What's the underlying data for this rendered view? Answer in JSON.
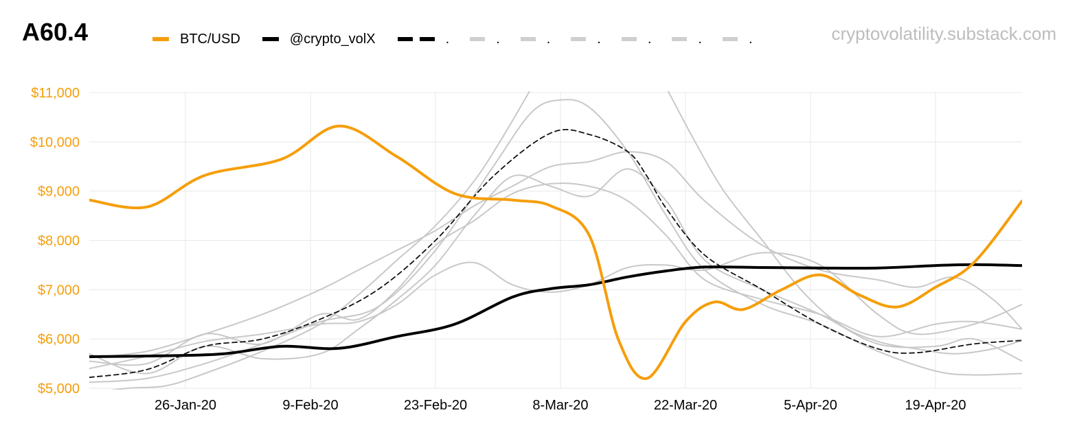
{
  "title": "A60.4",
  "source": "cryptovolatility.substack.com",
  "legend": {
    "btc_label": "BTC/USD",
    "vol_label": "@crypto_volX",
    "extra_markers": [
      ".",
      ".",
      ".",
      ".",
      ".",
      ".",
      "."
    ]
  },
  "colors": {
    "btc": "#f59e0b",
    "vol": "#000000",
    "gray": "#c8c8c8",
    "grid": "#e8e8e8"
  },
  "chart_data": {
    "type": "line",
    "title": "A60.4",
    "xlabel": "",
    "ylabel": "",
    "x_range": [
      0,
      97
    ],
    "ylim": [
      5000,
      11000
    ],
    "yticks": [
      5000,
      6000,
      7000,
      8000,
      9000,
      10000,
      11000
    ],
    "ytick_labels": [
      "$5,000",
      "$6,000",
      "$7,000",
      "$8,000",
      "$9,000",
      "$10,000",
      "$11,000"
    ],
    "xticks": [
      10,
      23,
      36,
      49,
      62,
      75,
      88
    ],
    "xtick_labels": [
      "26-Jan-20",
      "9-Feb-20",
      "23-Feb-20",
      "8-Mar-20",
      "22-Mar-20",
      "5-Apr-20",
      "19-Apr-20"
    ],
    "series": [
      {
        "name": "BTC/USD",
        "role": "btc",
        "x": [
          0,
          6,
          12,
          20,
          26,
          32,
          38,
          44,
          48,
          52,
          55,
          58,
          62,
          65,
          68,
          72,
          76,
          80,
          84,
          88,
          92,
          97
        ],
        "y": [
          8820,
          8680,
          9320,
          9650,
          10320,
          9700,
          8950,
          8820,
          8700,
          8100,
          6000,
          5200,
          6350,
          6750,
          6600,
          7000,
          7300,
          6900,
          6650,
          7050,
          7550,
          8800
        ]
      },
      {
        "name": "@crypto_volX",
        "role": "vol",
        "x": [
          0,
          8,
          14,
          20,
          26,
          32,
          38,
          44,
          48,
          52,
          56,
          60,
          64,
          70,
          76,
          82,
          88,
          92,
          97
        ],
        "y": [
          5640,
          5660,
          5700,
          5850,
          5810,
          6050,
          6300,
          6850,
          7020,
          7100,
          7260,
          7380,
          7460,
          7450,
          7440,
          7440,
          7490,
          7510,
          7490
        ],
        "thick": true
      },
      {
        "name": "dashed",
        "role": "dashed",
        "x": [
          0,
          6,
          12,
          18,
          24,
          30,
          36,
          42,
          48,
          52,
          56,
          58,
          60,
          64,
          70,
          76,
          82,
          86,
          92,
          97
        ],
        "y": [
          5220,
          5380,
          5850,
          6000,
          6400,
          7000,
          8000,
          9300,
          10180,
          10150,
          9800,
          9300,
          8650,
          7700,
          7000,
          6300,
          5800,
          5720,
          5900,
          5970
        ]
      },
      {
        "name": "g1",
        "role": "gray",
        "x": [
          0,
          6,
          12,
          18,
          24,
          30,
          36,
          42,
          46,
          49,
          52,
          56,
          60,
          64,
          70,
          76,
          82,
          88,
          92,
          97
        ],
        "y": [
          5120,
          5200,
          5500,
          5900,
          6350,
          6650,
          7800,
          9500,
          10600,
          10850,
          10700,
          9800,
          8500,
          7400,
          6700,
          6300,
          5750,
          5350,
          5270,
          5300
        ]
      },
      {
        "name": "g2",
        "role": "gray",
        "x": [
          0,
          4,
          8,
          12,
          18,
          24,
          28,
          32,
          36,
          40,
          43,
          46
        ],
        "y": [
          4900,
          5000,
          5050,
          5300,
          5750,
          6300,
          6900,
          7600,
          8300,
          9200,
          10100,
          11100
        ]
      },
      {
        "name": "g3",
        "role": "gray",
        "x": [
          60,
          63,
          66,
          70,
          74,
          78,
          82,
          86,
          90,
          94,
          97
        ],
        "y": [
          11100,
          10000,
          9000,
          8000,
          7000,
          6300,
          5950,
          5800,
          5700,
          5800,
          5970
        ]
      },
      {
        "name": "g4",
        "role": "gray",
        "x": [
          0,
          6,
          12,
          18,
          24,
          28,
          32,
          36,
          40,
          44,
          48,
          52,
          56,
          60,
          64,
          70,
          76,
          82,
          86,
          90,
          94,
          97
        ],
        "y": [
          5620,
          5750,
          6100,
          6500,
          7000,
          7400,
          7800,
          8200,
          8700,
          9100,
          9500,
          9600,
          9800,
          9600,
          8800,
          7900,
          7400,
          7200,
          7050,
          7250,
          6800,
          6200
        ]
      },
      {
        "name": "g5",
        "role": "gray",
        "x": [
          0,
          6,
          12,
          18,
          24,
          28,
          32,
          36,
          40,
          44,
          48,
          52,
          56,
          60,
          64,
          70,
          76,
          82,
          88,
          92,
          97
        ],
        "y": [
          5700,
          5300,
          5850,
          5600,
          5700,
          6200,
          6800,
          7500,
          8500,
          9300,
          9100,
          8900,
          9450,
          8800,
          7600,
          7000,
          6500,
          5900,
          5850,
          6000,
          5550
        ]
      },
      {
        "name": "g6",
        "role": "gray",
        "x": [
          0,
          6,
          12,
          18,
          24,
          28,
          32,
          36,
          40,
          44,
          48,
          52,
          56,
          60,
          64,
          70,
          76,
          82,
          86,
          92,
          97
        ],
        "y": [
          5400,
          5650,
          5950,
          6100,
          6300,
          6350,
          6700,
          7300,
          7550,
          7100,
          6950,
          7100,
          7450,
          7500,
          7400,
          7750,
          7500,
          6500,
          6100,
          6300,
          6700
        ]
      },
      {
        "name": "g7",
        "role": "gray",
        "x": [
          0,
          6,
          12,
          18,
          24,
          28,
          32,
          36,
          40,
          44,
          48,
          52,
          56,
          60,
          64,
          70,
          76,
          82,
          88,
          92,
          97
        ],
        "y": [
          5550,
          5500,
          6100,
          5900,
          6500,
          6400,
          7000,
          7900,
          8400,
          8950,
          9150,
          9100,
          8800,
          8100,
          7200,
          6800,
          6500,
          6050,
          6300,
          6350,
          6200
        ]
      }
    ]
  }
}
